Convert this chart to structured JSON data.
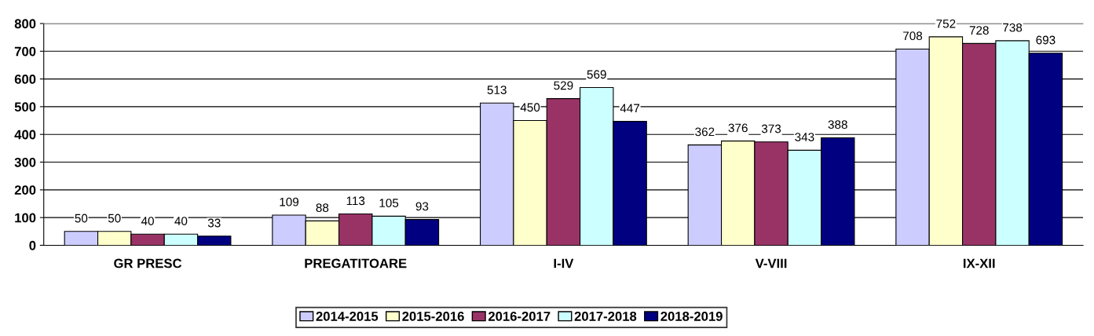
{
  "chart_data": {
    "type": "bar",
    "categories": [
      "GR PRESC",
      "PREGATITOARE",
      "I-IV",
      "V-VIII",
      "IX-XII"
    ],
    "series": [
      {
        "name": "2014-2015",
        "color": "#ccccff",
        "values": [
          50,
          109,
          513,
          362,
          708
        ]
      },
      {
        "name": "2015-2016",
        "color": "#ffffcc",
        "values": [
          50,
          88,
          450,
          376,
          752
        ]
      },
      {
        "name": "2016-2017",
        "color": "#993366",
        "values": [
          40,
          113,
          529,
          373,
          728
        ]
      },
      {
        "name": "2017-2018",
        "color": "#ccffff",
        "values": [
          40,
          105,
          569,
          343,
          738
        ]
      },
      {
        "name": "2018-2019",
        "color": "#000080",
        "values": [
          33,
          93,
          447,
          388,
          693
        ]
      }
    ],
    "ylim": [
      0,
      800
    ],
    "yticks": [
      0,
      100,
      200,
      300,
      400,
      500,
      600,
      700,
      800
    ],
    "grid": "y",
    "legend": "bottom",
    "data_labels": true
  }
}
